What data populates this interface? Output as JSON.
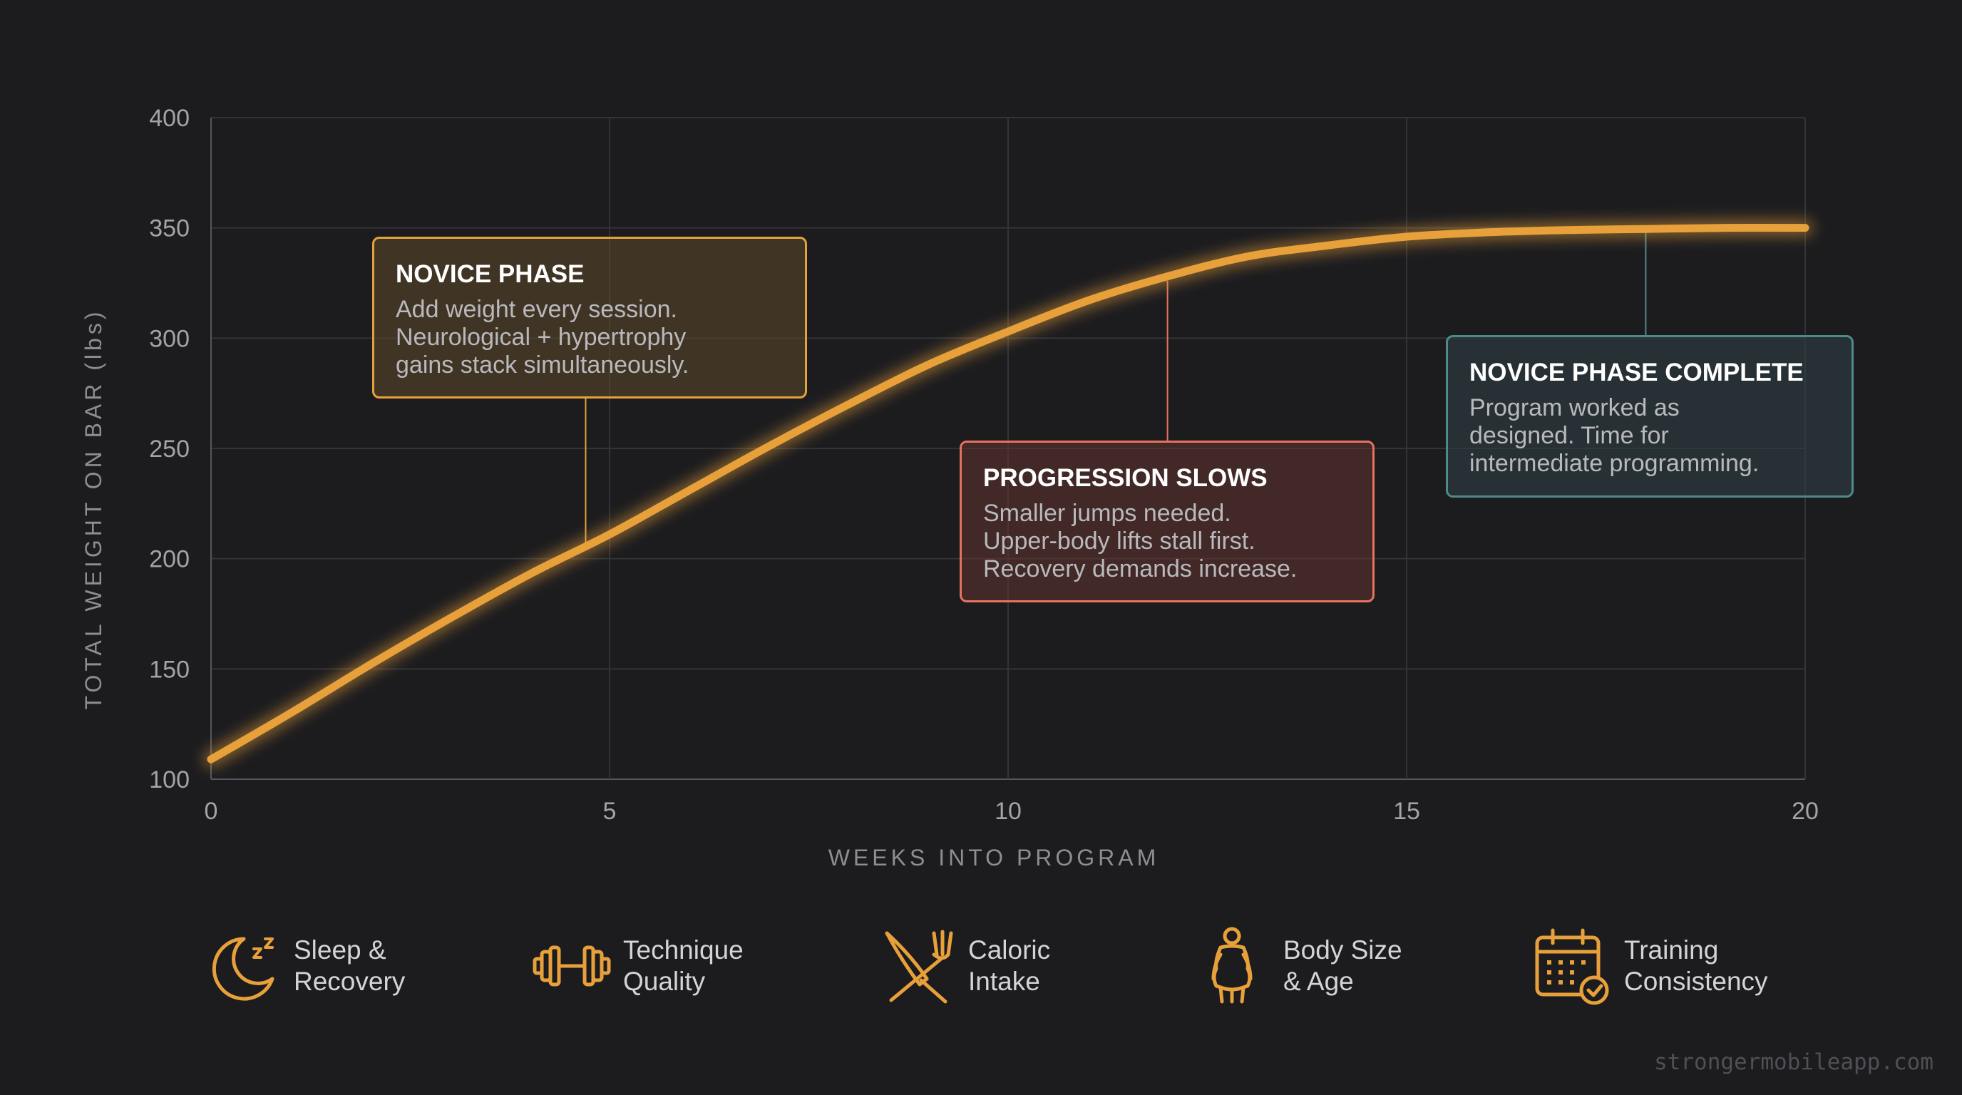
{
  "chart_data": {
    "type": "line",
    "xlabel": "WEEKS INTO PROGRAM",
    "ylabel": "TOTAL WEIGHT ON BAR (lbs)",
    "xlim": [
      0,
      20
    ],
    "ylim": [
      100,
      400
    ],
    "x_ticks": [
      "0",
      "5",
      "10",
      "15",
      "20"
    ],
    "y_ticks": [
      "100",
      "150",
      "200",
      "250",
      "300",
      "350",
      "400"
    ],
    "grid": true,
    "series": [
      {
        "x": [
          0,
          1,
          2,
          3,
          4,
          5,
          6,
          7,
          8,
          9,
          10,
          11,
          12,
          13,
          14,
          15,
          16,
          17,
          18,
          19,
          20
        ],
        "y": [
          109,
          130,
          152,
          173,
          193,
          211,
          231,
          251,
          270,
          288,
          303,
          317,
          328,
          337,
          342,
          346,
          348,
          349,
          349.5,
          350,
          350
        ],
        "color": "#e8a03a"
      }
    ],
    "annotations": [
      {
        "title": "NOVICE PHASE",
        "lines": [
          "Add weight every session.",
          "Neurological + hypertrophy",
          "gains stack simultaneously."
        ],
        "x": 4.7,
        "y": 204,
        "color": "#e6a23a"
      },
      {
        "title": "PROGRESSION SLOWS",
        "lines": [
          "Smaller jumps needed.",
          "Upper-body lifts stall first.",
          "Recovery demands increase."
        ],
        "x": 12,
        "y": 326,
        "color": "#e6735d"
      },
      {
        "title": "NOVICE PHASE COMPLETE",
        "lines": [
          "Program worked as",
          "designed. Time for",
          "intermediate programming."
        ],
        "x": 18,
        "y": 349,
        "color": "#4e8a8a"
      }
    ]
  },
  "factors": [
    {
      "icon": "moon-sleep-icon",
      "lines": [
        "Sleep &",
        "Recovery"
      ]
    },
    {
      "icon": "dumbbell-icon",
      "lines": [
        "Technique",
        "Quality"
      ]
    },
    {
      "icon": "fork-knife-icon",
      "lines": [
        "Caloric",
        "Intake"
      ]
    },
    {
      "icon": "person-body-icon",
      "lines": [
        "Body Size",
        "& Age"
      ]
    },
    {
      "icon": "calendar-check-icon",
      "lines": [
        "Training",
        "Consistency"
      ]
    }
  ],
  "watermark": "strongermobileapp.com",
  "colors": {
    "background": "#1c1c1f",
    "accent": "#e8a03a",
    "salmon": "#e6735d",
    "teal": "#4e8a8a"
  }
}
